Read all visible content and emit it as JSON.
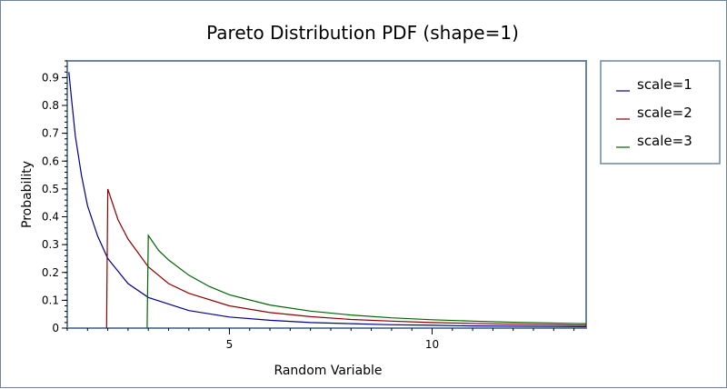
{
  "chart_data": {
    "type": "line",
    "title": "Pareto Distribution PDF (shape=1)",
    "xlabel": "Random Variable",
    "ylabel": "Probability",
    "xlim": [
      1,
      13.8
    ],
    "ylim": [
      0,
      0.96
    ],
    "x_ticks": [
      5,
      10
    ],
    "y_ticks": [
      0,
      0.1,
      0.2,
      0.3,
      0.4,
      0.5,
      0.6,
      0.7,
      0.8,
      0.9
    ],
    "legend_position": "right",
    "grid": false,
    "series": [
      {
        "name": "scale=1",
        "color": "#00008b",
        "points": [
          [
            1.04,
            0.92
          ],
          [
            1.1,
            0.83
          ],
          [
            1.2,
            0.69
          ],
          [
            1.35,
            0.55
          ],
          [
            1.5,
            0.44
          ],
          [
            1.75,
            0.33
          ],
          [
            2,
            0.25
          ],
          [
            2.5,
            0.16
          ],
          [
            3,
            0.11
          ],
          [
            4,
            0.063
          ],
          [
            5,
            0.04
          ],
          [
            6,
            0.028
          ],
          [
            7,
            0.02
          ],
          [
            8,
            0.016
          ],
          [
            9,
            0.012
          ],
          [
            10,
            0.01
          ],
          [
            11,
            0.008
          ],
          [
            12,
            0.007
          ],
          [
            13.8,
            0.005
          ]
        ]
      },
      {
        "name": "scale=2",
        "color": "#8b0000",
        "points": [
          [
            1.97,
            0
          ],
          [
            2.0,
            0.5
          ],
          [
            2.25,
            0.39
          ],
          [
            2.5,
            0.32
          ],
          [
            3,
            0.22
          ],
          [
            3.5,
            0.16
          ],
          [
            4,
            0.125
          ],
          [
            5,
            0.08
          ],
          [
            6,
            0.056
          ],
          [
            7,
            0.041
          ],
          [
            8,
            0.031
          ],
          [
            9,
            0.025
          ],
          [
            10,
            0.02
          ],
          [
            11,
            0.017
          ],
          [
            12,
            0.014
          ],
          [
            13.8,
            0.01
          ]
        ]
      },
      {
        "name": "scale=3",
        "color": "#006400",
        "points": [
          [
            2.97,
            0
          ],
          [
            3.0,
            0.333
          ],
          [
            3.25,
            0.28
          ],
          [
            3.5,
            0.245
          ],
          [
            4,
            0.19
          ],
          [
            4.5,
            0.15
          ],
          [
            5,
            0.12
          ],
          [
            6,
            0.083
          ],
          [
            7,
            0.061
          ],
          [
            8,
            0.047
          ],
          [
            9,
            0.037
          ],
          [
            10,
            0.03
          ],
          [
            11,
            0.025
          ],
          [
            12,
            0.021
          ],
          [
            13.8,
            0.016
          ]
        ]
      }
    ]
  }
}
